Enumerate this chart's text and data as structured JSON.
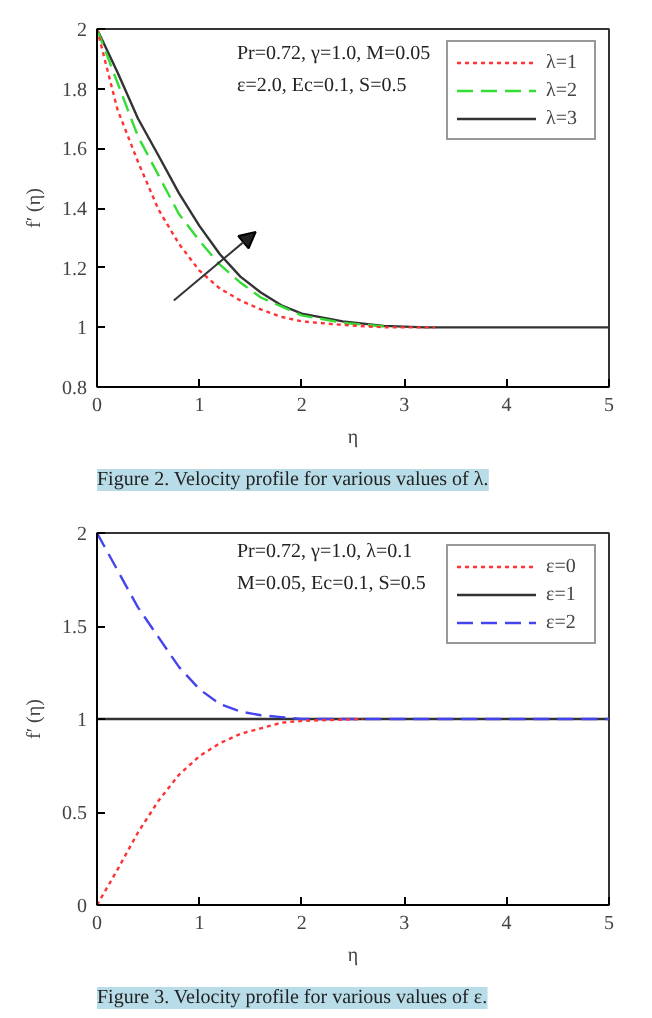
{
  "chart_data": [
    {
      "type": "line",
      "title": "Figure 2. Velocity profile for various values of λ.",
      "xlabel": "η",
      "ylabel": "f′ (η)",
      "annotations": [
        "Pr=0.72, γ=1.0, M=0.05",
        "ε=2.0, Ec=0.1, S=0.5"
      ],
      "xlim": [
        0,
        5
      ],
      "ylim": [
        0.8,
        2
      ],
      "xticks": [
        0,
        1,
        2,
        3,
        4,
        5
      ],
      "yticks": [
        0.8,
        1,
        1.2,
        1.4,
        1.6,
        1.8,
        2
      ],
      "grid": false,
      "legend": "top right",
      "series": [
        {
          "name": "λ=1",
          "color": "#ff3333",
          "line_style": "dotted",
          "x": [
            0,
            0.2,
            0.4,
            0.6,
            0.8,
            1.0,
            1.2,
            1.4,
            1.6,
            1.8,
            2.0,
            2.4,
            2.8,
            3.3
          ],
          "values": [
            2,
            1.73,
            1.555,
            1.395,
            1.28,
            1.19,
            1.13,
            1.09,
            1.06,
            1.035,
            1.02,
            1.008,
            1.0,
            1.0
          ]
        },
        {
          "name": "λ=2",
          "color": "#33dd33",
          "line_style": "dashed",
          "x": [
            0,
            0.2,
            0.4,
            0.6,
            0.8,
            1.0,
            1.2,
            1.4,
            1.6,
            1.8,
            2.0,
            2.4,
            2.8
          ],
          "values": [
            2,
            1.82,
            1.64,
            1.51,
            1.38,
            1.29,
            1.21,
            1.15,
            1.1,
            1.07,
            1.04,
            1.015,
            1.003
          ]
        },
        {
          "name": "λ=3",
          "color": "#333333",
          "line_style": "solid",
          "x": [
            0,
            0.2,
            0.4,
            0.6,
            0.8,
            1.0,
            1.2,
            1.4,
            1.6,
            1.8,
            2.0,
            2.4,
            2.8,
            3.2,
            5
          ],
          "values": [
            2,
            1.855,
            1.7,
            1.576,
            1.45,
            1.34,
            1.245,
            1.17,
            1.117,
            1.074,
            1.046,
            1.02,
            1.005,
            1.0,
            1.0
          ]
        }
      ]
    },
    {
      "type": "line",
      "title": "Figure 3. Velocity profile for various values of ε.",
      "xlabel": "η",
      "ylabel": "f′ (η)",
      "annotations": [
        "Pr=0.72, γ=1.0, λ=0.1",
        "M=0.05, Ec=0.1, S=0.5"
      ],
      "xlim": [
        0,
        5
      ],
      "ylim": [
        0,
        2
      ],
      "xticks": [
        0,
        1,
        2,
        3,
        4,
        5
      ],
      "yticks": [
        0,
        0.5,
        1,
        1.5,
        2
      ],
      "grid": false,
      "legend": "top right",
      "series": [
        {
          "name": "ε=0",
          "color": "#ff3333",
          "line_style": "dotted",
          "x": [
            0,
            0.2,
            0.4,
            0.6,
            0.8,
            1.0,
            1.2,
            1.4,
            1.6,
            1.8,
            2.0,
            2.6
          ],
          "values": [
            0,
            0.19,
            0.39,
            0.56,
            0.7,
            0.8,
            0.87,
            0.92,
            0.95,
            0.98,
            0.99,
            1.0
          ]
        },
        {
          "name": "ε=1",
          "color": "#333333",
          "line_style": "solid",
          "x": [
            0,
            5
          ],
          "values": [
            1,
            1
          ]
        },
        {
          "name": "ε=2",
          "color": "#4444ee",
          "line_style": "dashed",
          "x": [
            0,
            0.2,
            0.4,
            0.6,
            0.8,
            1.0,
            1.2,
            1.4,
            1.6,
            1.8,
            2.0,
            5
          ],
          "values": [
            2,
            1.8,
            1.6,
            1.44,
            1.28,
            1.16,
            1.08,
            1.04,
            1.02,
            1.01,
            1.0,
            1.0
          ]
        }
      ]
    }
  ]
}
